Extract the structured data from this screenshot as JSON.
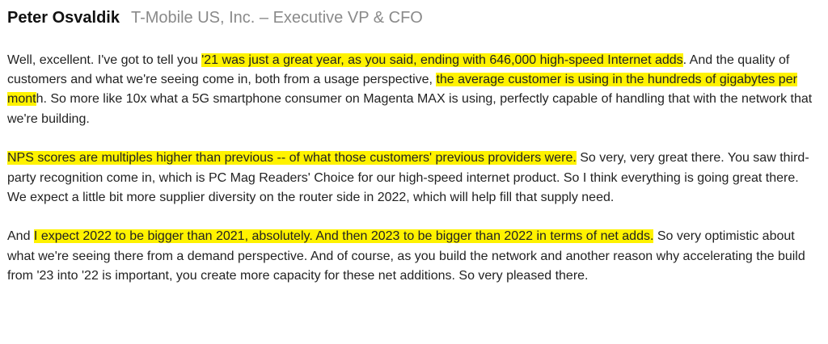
{
  "header": {
    "speaker": "Peter Osvaldik",
    "role": "T-Mobile US, Inc. – Executive VP & CFO"
  },
  "paragraphs": [
    {
      "segments": [
        {
          "text": "Well, excellent. I've got to tell you ",
          "highlight": false
        },
        {
          "text": "'21 was just a great year, as you said, ending with 646,000 high-speed Internet adds",
          "highlight": true
        },
        {
          "text": ". And the quality of customers and what we're seeing come in, both from a usage perspective, ",
          "highlight": false
        },
        {
          "text": "the average customer is using in the hundreds of gigabytes per mont",
          "highlight": true
        },
        {
          "text": "h. So more like 10x what a 5G smartphone consumer on Magenta MAX is using, perfectly capable of handling that with the network that we're building.",
          "highlight": false
        }
      ]
    },
    {
      "segments": [
        {
          "text": "NPS scores are multiples higher than previous -- of what those customers' previous providers were.",
          "highlight": true
        },
        {
          "text": " So very, very great there. You saw third-party recognition come in, which is PC Mag Readers' Choice for our high-speed internet product. So I think everything is going great there. We expect a little bit more supplier diversity on the router side in 2022, which will help fill that supply need.",
          "highlight": false
        }
      ]
    },
    {
      "segments": [
        {
          "text": "And ",
          "highlight": false
        },
        {
          "text": "I expect 2022 to be bigger than 2021, absolutely. And then 2023 to be bigger than 2022 in terms of net adds.",
          "highlight": true
        },
        {
          "text": " So very optimistic about what we're seeing there from a demand perspective. And of course, as you build the network and another reason why accelerating the build from '23 into '22 is important, you create more capacity for these net additions. So very pleased there.",
          "highlight": false
        }
      ]
    }
  ],
  "colors": {
    "highlight": "#fff200",
    "speaker": "#111111",
    "role": "#8a8a8a",
    "body_text": "#222222"
  }
}
